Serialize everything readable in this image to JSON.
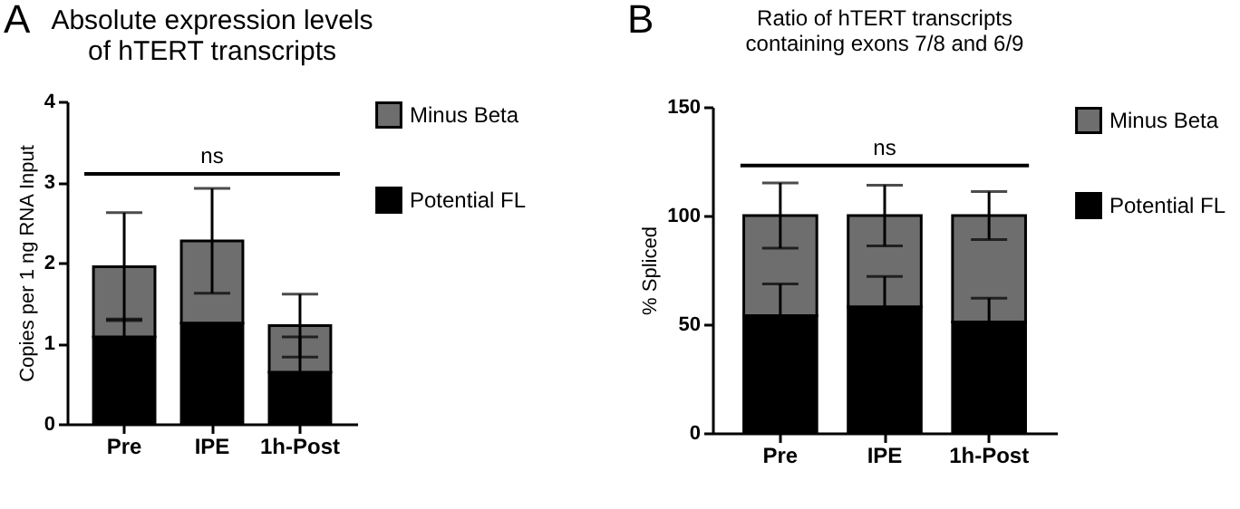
{
  "chart_data": [
    {
      "type": "bar",
      "title": "Absolute expression levels\nof hTERT transcripts",
      "ylabel": "Copies per 1 ng RNA Input",
      "annotations": [
        "A"
      ],
      "ref_lines": [
        {
          "axis": "y",
          "value": 3.1,
          "label": "ns"
        }
      ],
      "categories": [
        "Pre",
        "IPE",
        "1h-Post"
      ],
      "stacked": true,
      "legend": "right",
      "grid": false,
      "ylim": [
        0,
        4
      ],
      "yticks": [
        0,
        1,
        2,
        3,
        4
      ],
      "series": [
        {
          "name": "Potential FL",
          "color": "#000000",
          "values": [
            1.08,
            1.25,
            0.64
          ],
          "errors": [
            0.22,
            null,
            0.44
          ]
        },
        {
          "name": "Minus Beta",
          "color": "#6e6e6e",
          "values": [
            0.87,
            1.02,
            0.58
          ],
          "errors": [
            0.67,
            0.65,
            0.39
          ]
        }
      ]
    },
    {
      "type": "bar",
      "title": "Ratio of hTERT transcripts\ncontaining exons 7/8 and 6/9",
      "ylabel": "% Spliced",
      "annotations": [
        "B"
      ],
      "ref_lines": [
        {
          "axis": "y",
          "value": 123,
          "label": "ns"
        }
      ],
      "categories": [
        "Pre",
        "IPE",
        "1h-Post"
      ],
      "stacked": true,
      "legend": "right",
      "grid": false,
      "ylim": [
        0,
        150
      ],
      "yticks": [
        0,
        50,
        100,
        150
      ],
      "series": [
        {
          "name": "Potential FL",
          "color": "#000000",
          "values": [
            54,
            58,
            51
          ],
          "errors": [
            14.5,
            14,
            11
          ]
        },
        {
          "name": "Minus Beta",
          "color": "#6e6e6e",
          "values": [
            46,
            42,
            49
          ],
          "errors": [
            15,
            14,
            11
          ]
        }
      ]
    }
  ]
}
